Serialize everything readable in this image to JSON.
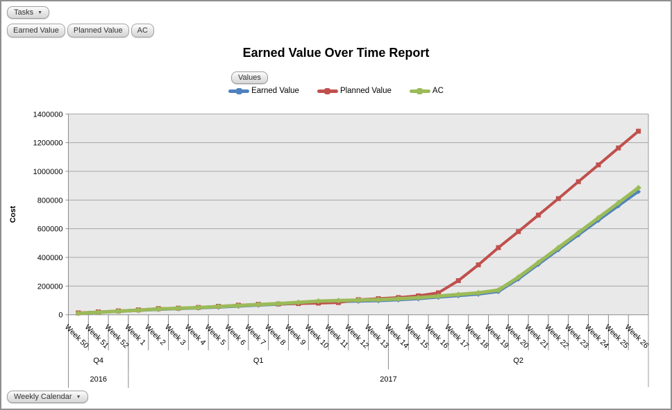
{
  "toolbar": {
    "tasks_button": "Tasks",
    "filter_chips": [
      "Earned Value",
      "Planned Value",
      "AC"
    ],
    "values_button": "Values",
    "calendar_button": "Weekly Calendar"
  },
  "report": {
    "title": "Earned Value Over Time Report"
  },
  "chart_data": {
    "type": "line",
    "title": "Earned Value Over Time Report",
    "xlabel": "",
    "ylabel": "Cost",
    "ylim": [
      0,
      1400000
    ],
    "ytick_step": 200000,
    "yticks": [
      0,
      200000,
      400000,
      600000,
      800000,
      1000000,
      1200000,
      1400000
    ],
    "grid": true,
    "legend_position": "top",
    "plot_bg": "#e9e9e9",
    "categories": [
      "Week 50",
      "Week 51",
      "Week 52",
      "Week 1",
      "Week 2",
      "Week 3",
      "Week 4",
      "Week 5",
      "Week 6",
      "Week 7",
      "Week 8",
      "Week 9",
      "Week 10",
      "Week 11",
      "Week 12",
      "Week 13",
      "Week 14",
      "Week 15",
      "Week 16",
      "Week 17",
      "Week 18",
      "Week 19",
      "Week 20",
      "Week 21",
      "Week 22",
      "Week 23",
      "Week 24",
      "Week 25",
      "Week 26"
    ],
    "series": [
      {
        "name": "Earned Value",
        "color": "#4f81bd",
        "values": [
          8000,
          14000,
          21000,
          28000,
          35000,
          40000,
          45000,
          51000,
          58000,
          65000,
          71000,
          78000,
          85000,
          90000,
          93000,
          96000,
          102000,
          110000,
          121000,
          131000,
          142000,
          160000,
          248000,
          350000,
          452000,
          555000,
          657000,
          758000,
          858000
        ]
      },
      {
        "name": "Planned Value",
        "color": "#c0504d",
        "values": [
          13000,
          20000,
          27000,
          34000,
          43000,
          46000,
          51000,
          59000,
          67000,
          73000,
          75000,
          78000,
          81000,
          85000,
          105000,
          112000,
          120000,
          132000,
          153000,
          238000,
          348000,
          468000,
          580000,
          695000,
          810000,
          928000,
          1045000,
          1163000,
          1280000
        ]
      },
      {
        "name": "AC",
        "color": "#9bbb59",
        "values": [
          10000,
          17000,
          25000,
          32000,
          40000,
          45000,
          50000,
          57000,
          64000,
          71000,
          78000,
          86000,
          95000,
          99000,
          102000,
          105000,
          111000,
          119000,
          130000,
          141000,
          153000,
          172000,
          262000,
          365000,
          468000,
          572000,
          676000,
          780000,
          885000
        ]
      }
    ],
    "x_groups_quarters": [
      {
        "label": "Q4",
        "from": 0,
        "to": 3
      },
      {
        "label": "Q1",
        "from": 3,
        "to": 16
      },
      {
        "label": "Q2",
        "from": 16,
        "to": 29
      }
    ],
    "x_groups_years": [
      {
        "label": "2016",
        "from": 0,
        "to": 3
      },
      {
        "label": "2017",
        "from": 3,
        "to": 29
      }
    ]
  }
}
